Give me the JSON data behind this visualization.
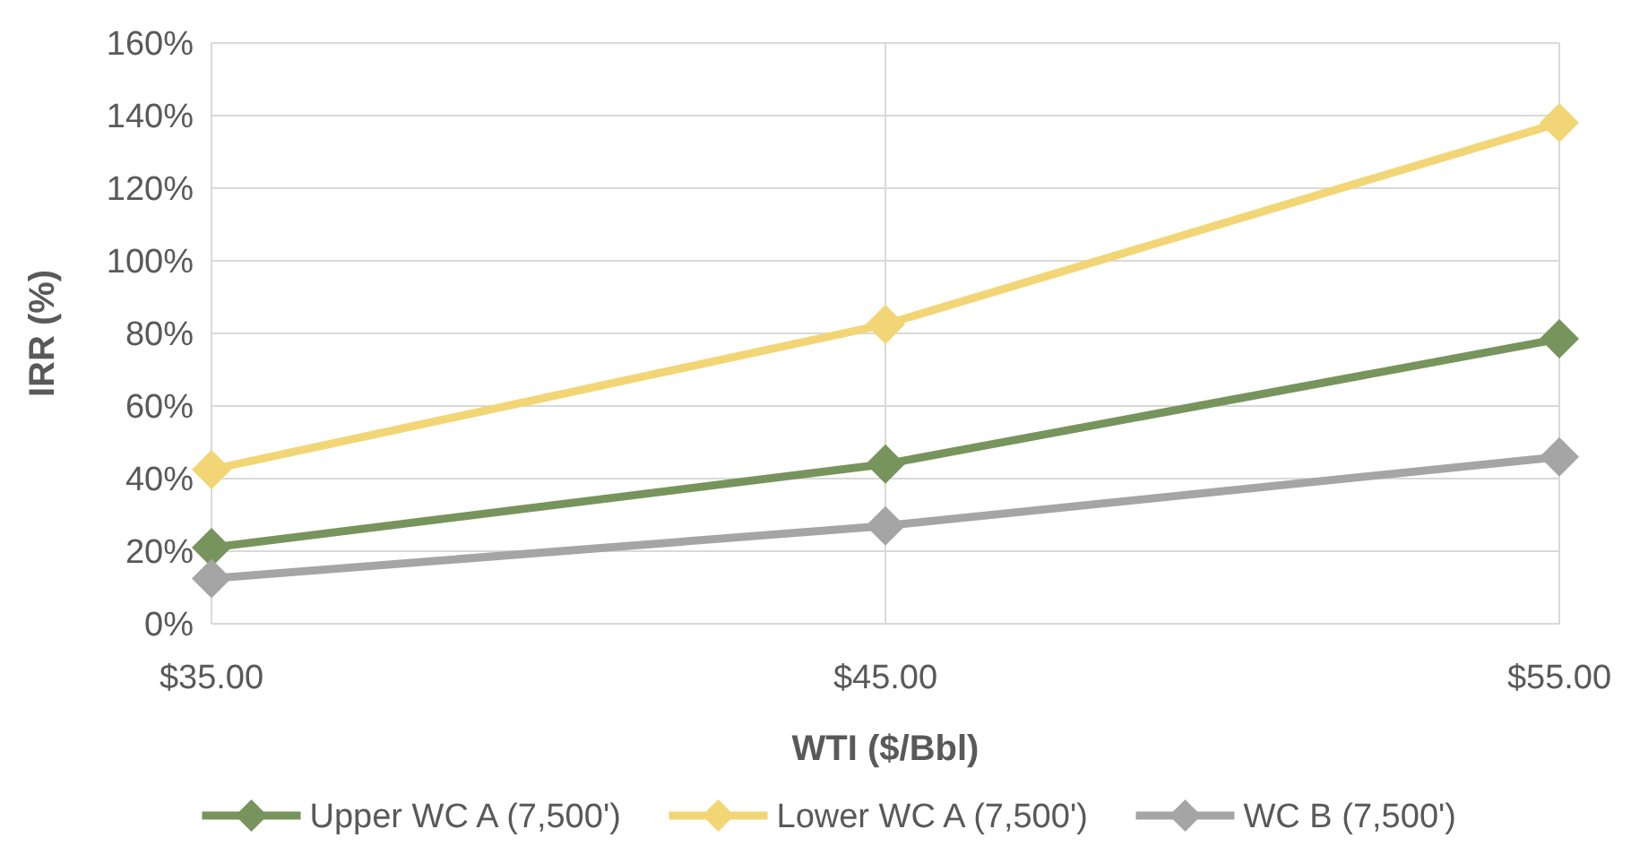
{
  "chart_data": {
    "type": "line",
    "xlabel": "WTI ($/Bbl)",
    "ylabel": "IRR (%)",
    "x": [
      35,
      45,
      55
    ],
    "xlim": [
      35,
      55
    ],
    "xticks": [
      {
        "value": 35,
        "label": "$35.00"
      },
      {
        "value": 45,
        "label": "$45.00"
      },
      {
        "value": 55,
        "label": "$55.00"
      }
    ],
    "ylim": [
      0,
      160
    ],
    "yticks": [
      {
        "value": 0,
        "label": "0%"
      },
      {
        "value": 20,
        "label": "20%"
      },
      {
        "value": 40,
        "label": "40%"
      },
      {
        "value": 60,
        "label": "60%"
      },
      {
        "value": 80,
        "label": "80%"
      },
      {
        "value": 100,
        "label": "100%"
      },
      {
        "value": 120,
        "label": "120%"
      },
      {
        "value": 140,
        "label": "140%"
      },
      {
        "value": 160,
        "label": "160%"
      }
    ],
    "series": [
      {
        "name": "Upper WC A (7,500')",
        "color": "#77945c",
        "values": [
          21,
          44,
          78.5
        ]
      },
      {
        "name": "Lower WC A (7,500')",
        "color": "#f2d675",
        "values": [
          42.5,
          82.5,
          138
        ]
      },
      {
        "name": "WC B (7,500')",
        "color": "#a5a5a5",
        "values": [
          12.5,
          27,
          46
        ]
      }
    ],
    "grid": true,
    "legend": "bottom",
    "marker": "diamond",
    "line_style": "solid"
  }
}
